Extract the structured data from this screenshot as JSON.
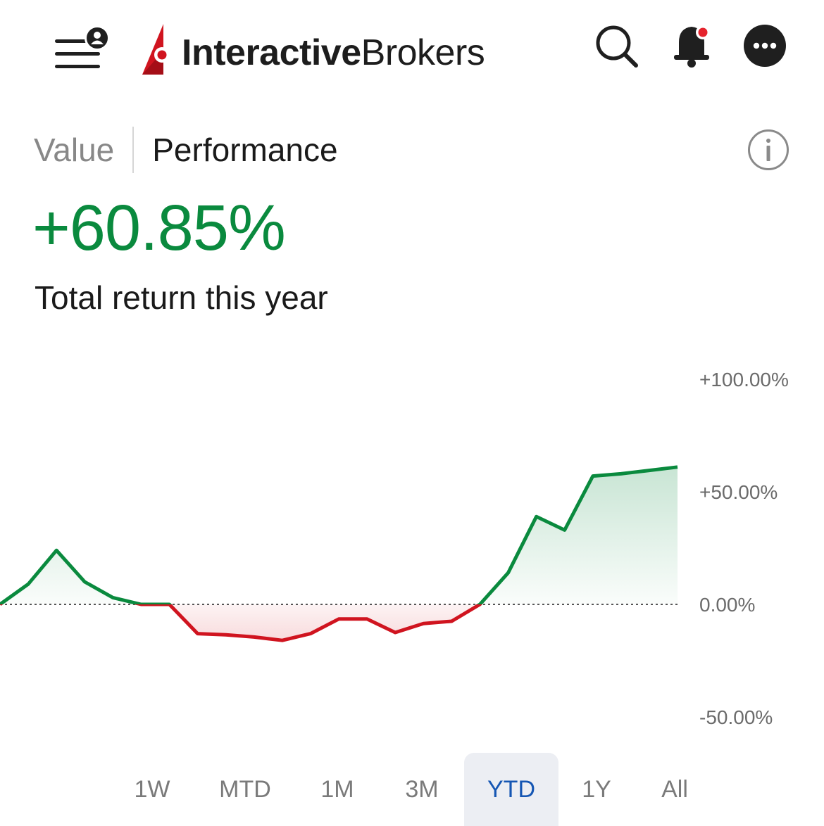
{
  "header": {
    "logo_bold": "Interactive",
    "logo_regular": "Brokers",
    "icons": [
      "menu-icon",
      "user-icon",
      "search-icon",
      "bell-icon",
      "more-icon"
    ],
    "accent_color": "#d0141f"
  },
  "tabs": [
    {
      "label": "Value",
      "active": false
    },
    {
      "label": "Performance",
      "active": true
    }
  ],
  "summary": {
    "total_return": "+60.85%",
    "caption": "Total return this year",
    "positive_color": "#0a8a3e",
    "negative_color": "#d0141f"
  },
  "chart_data": {
    "type": "area",
    "y_ticks": [
      "+100.00%",
      "+50.00%",
      "0.00%",
      "-50.00%"
    ],
    "y_tick_values": [
      100,
      50,
      0,
      -50
    ],
    "ylim": [
      -50,
      100
    ],
    "baseline": 0,
    "x": [
      0,
      1,
      2,
      3,
      4,
      5,
      6,
      7,
      8,
      9,
      10,
      11,
      12,
      13,
      14,
      15,
      16,
      17,
      18,
      19,
      20,
      21,
      22,
      23,
      24
    ],
    "values": [
      0,
      9,
      24,
      10,
      3,
      0,
      0,
      -13,
      -13.5,
      -14.5,
      -16,
      -13,
      -6.5,
      -6.5,
      -12.5,
      -8.5,
      -7.5,
      0,
      14,
      39,
      33,
      57,
      58,
      59.5,
      61
    ]
  },
  "ranges": [
    {
      "label": "1W",
      "active": false
    },
    {
      "label": "MTD",
      "active": false
    },
    {
      "label": "1M",
      "active": false
    },
    {
      "label": "3M",
      "active": false
    },
    {
      "label": "YTD",
      "active": true
    },
    {
      "label": "1Y",
      "active": false
    },
    {
      "label": "All",
      "active": false
    }
  ]
}
